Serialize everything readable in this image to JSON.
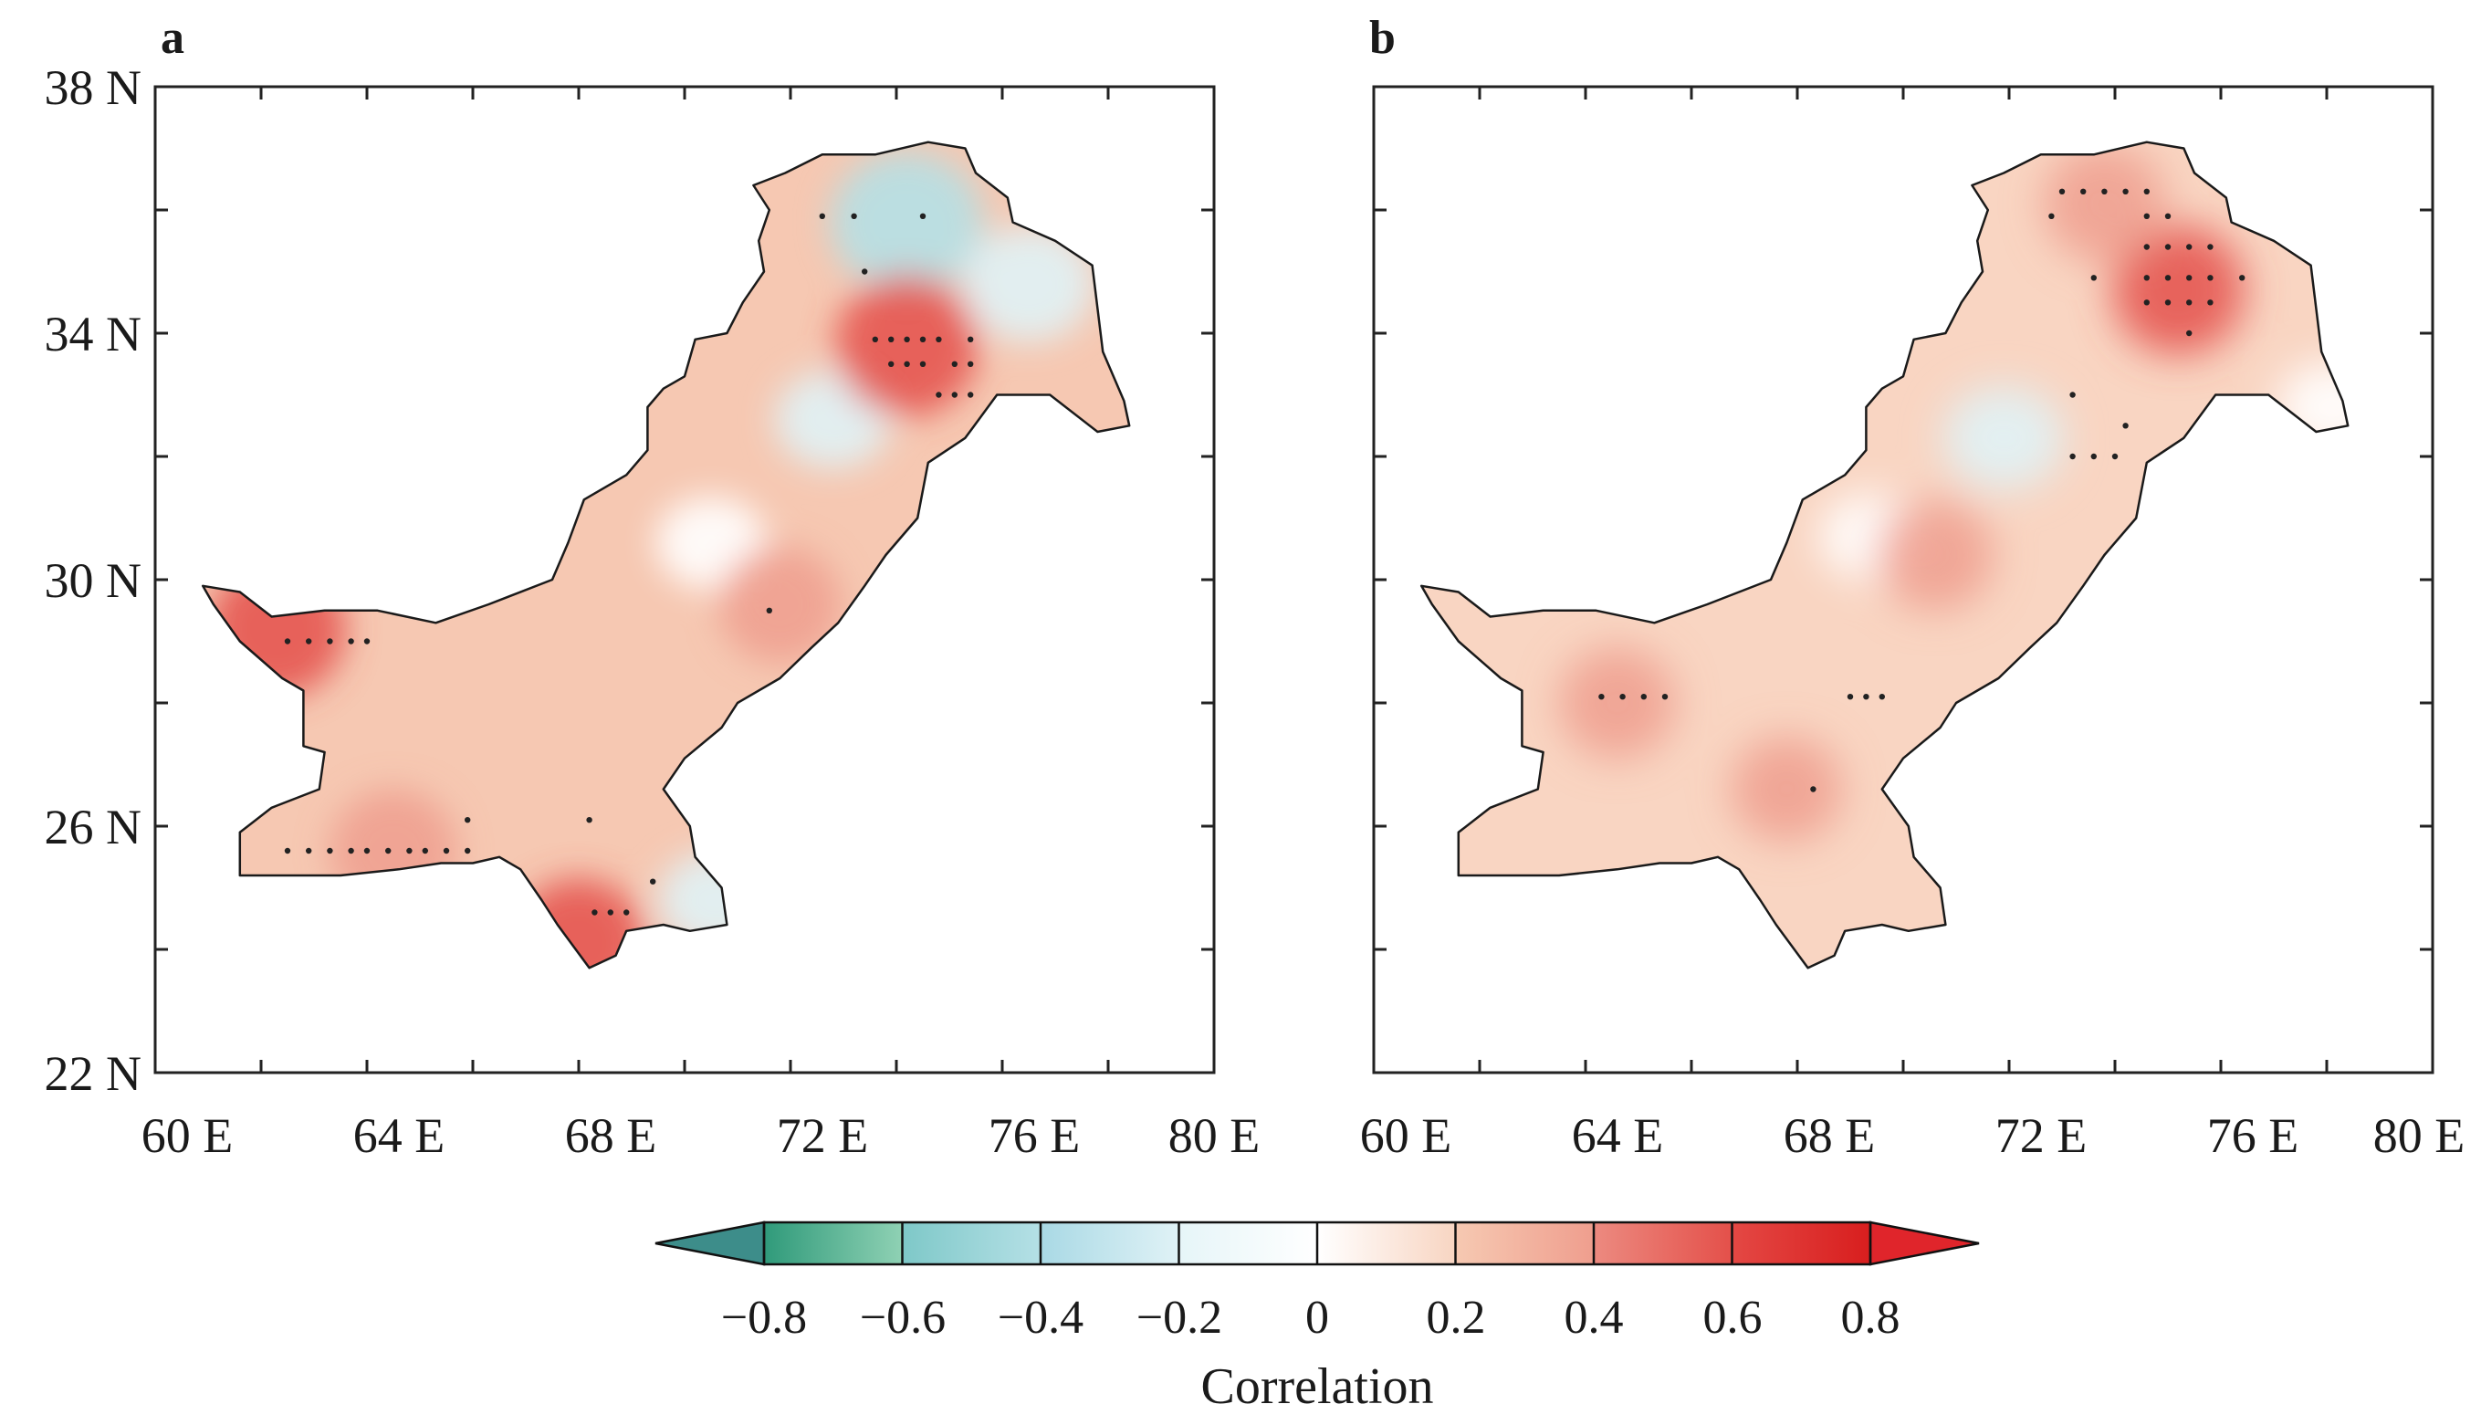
{
  "figure": {
    "panels": [
      {
        "label": "a",
        "lat_labels": [
          "38 N",
          "34 N",
          "30 N",
          "26 N",
          "22 N"
        ],
        "lon_labels": [
          "60 E",
          "64 E",
          "68 E",
          "72 E",
          "76 E",
          "80 E"
        ],
        "region": "Pakistan",
        "fill_color": "#f6c8b2",
        "negative_patches": [
          {
            "lon": 74.2,
            "lat": 35.8,
            "value": -0.55
          },
          {
            "lon": 76.5,
            "lat": 34.8,
            "value": -0.35
          },
          {
            "lon": 72.8,
            "lat": 32.6,
            "value": -0.2
          },
          {
            "lon": 70.5,
            "lat": 30.6,
            "value": -0.15
          },
          {
            "lon": 70.6,
            "lat": 24.8,
            "value": -0.2
          }
        ],
        "positive_patches": [
          {
            "lon": 74.2,
            "lat": 33.8,
            "value": 0.55
          },
          {
            "lon": 62.3,
            "lat": 29.2,
            "value": 0.5
          },
          {
            "lon": 64.5,
            "lat": 25.6,
            "value": 0.4
          },
          {
            "lon": 68.0,
            "lat": 24.1,
            "value": 0.45
          },
          {
            "lon": 71.8,
            "lat": 29.6,
            "value": 0.35
          }
        ],
        "significant_points": [
          [
            73.6,
            33.9
          ],
          [
            73.9,
            33.9
          ],
          [
            74.2,
            33.9
          ],
          [
            74.5,
            33.9
          ],
          [
            74.8,
            33.9
          ],
          [
            75.4,
            33.9
          ],
          [
            73.9,
            33.5
          ],
          [
            74.2,
            33.5
          ],
          [
            74.5,
            33.5
          ],
          [
            75.1,
            33.5
          ],
          [
            75.4,
            33.5
          ],
          [
            74.8,
            33.0
          ],
          [
            75.1,
            33.0
          ],
          [
            75.4,
            33.0
          ],
          [
            72.6,
            35.9
          ],
          [
            73.2,
            35.9
          ],
          [
            74.5,
            35.9
          ],
          [
            73.4,
            35.0
          ],
          [
            71.6,
            29.5
          ],
          [
            62.5,
            29.0
          ],
          [
            62.9,
            29.0
          ],
          [
            63.3,
            29.0
          ],
          [
            63.7,
            29.0
          ],
          [
            64.0,
            29.0
          ],
          [
            62.5,
            25.6
          ],
          [
            62.9,
            25.6
          ],
          [
            63.3,
            25.6
          ],
          [
            63.7,
            25.6
          ],
          [
            64.0,
            25.6
          ],
          [
            64.4,
            25.6
          ],
          [
            64.8,
            25.6
          ],
          [
            65.1,
            25.6
          ],
          [
            65.5,
            25.6
          ],
          [
            65.9,
            25.6
          ],
          [
            65.9,
            26.1
          ],
          [
            68.2,
            26.1
          ],
          [
            68.3,
            24.6
          ],
          [
            68.6,
            24.6
          ],
          [
            68.9,
            24.6
          ],
          [
            69.4,
            25.1
          ]
        ]
      },
      {
        "label": "b",
        "lat_labels": [
          "38 N",
          "34 N",
          "30 N",
          "26 N",
          "22 N"
        ],
        "lon_labels": [
          "60 E",
          "64 E",
          "68 E",
          "72 E",
          "76 E",
          "80 E"
        ],
        "region": "Pakistan",
        "fill_color": "#f9d5c2",
        "negative_patches": [
          {
            "lon": 71.9,
            "lat": 32.3,
            "value": -0.25
          },
          {
            "lon": 78.1,
            "lat": 32.8,
            "value": -0.15
          },
          {
            "lon": 69.4,
            "lat": 30.7,
            "value": -0.1
          }
        ],
        "positive_patches": [
          {
            "lon": 75.2,
            "lat": 34.7,
            "value": 0.45
          },
          {
            "lon": 73.8,
            "lat": 36.1,
            "value": 0.35
          },
          {
            "lon": 70.6,
            "lat": 30.4,
            "value": 0.3
          },
          {
            "lon": 64.6,
            "lat": 28.0,
            "value": 0.3
          },
          {
            "lon": 67.8,
            "lat": 26.6,
            "value": 0.25
          }
        ],
        "significant_points": [
          [
            73.0,
            36.3
          ],
          [
            73.4,
            36.3
          ],
          [
            73.8,
            36.3
          ],
          [
            74.2,
            36.3
          ],
          [
            74.6,
            36.3
          ],
          [
            72.8,
            35.9
          ],
          [
            74.6,
            35.9
          ],
          [
            75.0,
            35.9
          ],
          [
            74.6,
            35.4
          ],
          [
            75.0,
            35.4
          ],
          [
            75.4,
            35.4
          ],
          [
            75.8,
            35.4
          ],
          [
            73.6,
            34.9
          ],
          [
            74.6,
            34.9
          ],
          [
            75.0,
            34.9
          ],
          [
            75.4,
            34.9
          ],
          [
            75.8,
            34.9
          ],
          [
            76.4,
            34.9
          ],
          [
            74.6,
            34.5
          ],
          [
            75.0,
            34.5
          ],
          [
            75.4,
            34.5
          ],
          [
            75.8,
            34.5
          ],
          [
            75.4,
            34.0
          ],
          [
            73.2,
            33.0
          ],
          [
            73.2,
            32.0
          ],
          [
            73.6,
            32.0
          ],
          [
            74.0,
            32.0
          ],
          [
            74.2,
            32.5
          ],
          [
            64.3,
            28.1
          ],
          [
            64.7,
            28.1
          ],
          [
            65.1,
            28.1
          ],
          [
            65.5,
            28.1
          ],
          [
            69.0,
            28.1
          ],
          [
            69.3,
            28.1
          ],
          [
            69.6,
            28.1
          ],
          [
            68.3,
            26.6
          ]
        ]
      }
    ]
  },
  "chart_data": {
    "type": "heatmap",
    "variable": "Correlation",
    "xlabel": "",
    "ylabel": "",
    "x_ticks": [
      "60 E",
      "64 E",
      "68 E",
      "72 E",
      "76 E",
      "80 E"
    ],
    "y_ticks": [
      "38 N",
      "34 N",
      "30 N",
      "26 N",
      "22 N"
    ],
    "xlim": [
      60,
      80
    ],
    "ylim": [
      22,
      38
    ],
    "panels": [
      "a",
      "b"
    ]
  },
  "colorbar": {
    "title": "Correlation",
    "tick_labels": [
      "−0.8",
      "−0.6",
      "−0.4",
      "−0.2",
      "0",
      "0.2",
      "0.4",
      "0.6",
      "0.8"
    ],
    "levels": [
      -0.8,
      -0.6,
      -0.4,
      -0.2,
      0,
      0.2,
      0.4,
      0.6,
      0.8
    ],
    "segments": [
      {
        "from": -0.8,
        "to": -0.6,
        "start": "#2f9a7a",
        "end": "#8fd1b4"
      },
      {
        "from": -0.6,
        "to": -0.4,
        "start": "#7ec8c8",
        "end": "#b5e0e6"
      },
      {
        "from": -0.4,
        "to": -0.2,
        "start": "#a9d9e5",
        "end": "#e0f2f6"
      },
      {
        "from": -0.2,
        "to": 0,
        "start": "#e6f5f8",
        "end": "#ffffff"
      },
      {
        "from": 0,
        "to": 0.2,
        "start": "#ffffff",
        "end": "#f8d5c2"
      },
      {
        "from": 0.2,
        "to": 0.4,
        "start": "#f6c9b2",
        "end": "#ef9e8e"
      },
      {
        "from": 0.4,
        "to": 0.6,
        "start": "#ec8a80",
        "end": "#e4504a"
      },
      {
        "from": 0.6,
        "to": 0.8,
        "start": "#e44844",
        "end": "#d81e1e"
      }
    ],
    "extend_low_color": "#3d8d8a",
    "extend_high_color": "#e0252b"
  }
}
